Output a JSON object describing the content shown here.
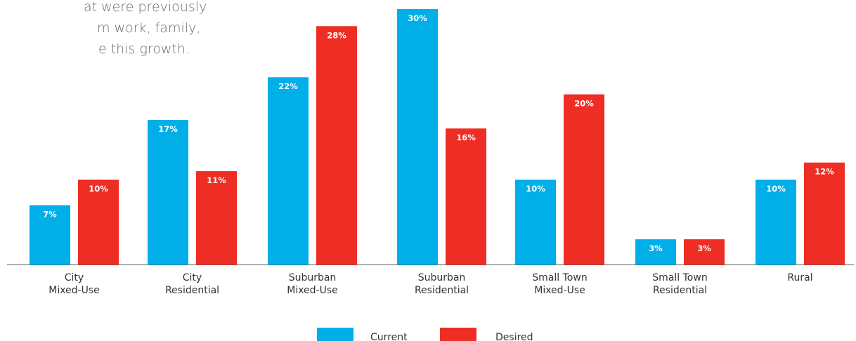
{
  "intro_lines": [
    "at were previously",
    "m work, family,",
    "e this growth."
  ],
  "chart_data": {
    "type": "bar",
    "categories": [
      [
        "City",
        "Mixed-Use"
      ],
      [
        "City",
        "Residential"
      ],
      [
        "Suburban",
        "Mixed-Use"
      ],
      [
        "Suburban",
        "Residential"
      ],
      [
        "Small Town",
        "Mixed-Use"
      ],
      [
        "Small Town",
        "Residential"
      ],
      [
        "Rural"
      ]
    ],
    "series": [
      {
        "name": "Current",
        "values": [
          7,
          17,
          22,
          30,
          10,
          3,
          10
        ],
        "labels": [
          "7%",
          "17%",
          "22%",
          "30%",
          "10%",
          "3%",
          "10%"
        ],
        "color": "#00aee8"
      },
      {
        "name": "Desired",
        "values": [
          10,
          11,
          28,
          16,
          20,
          3,
          12
        ],
        "labels": [
          "10%",
          "11%",
          "28%",
          "16%",
          "20%",
          "3%",
          "12%"
        ],
        "color": "#ee2e24"
      }
    ],
    "ylim": [
      0,
      30
    ],
    "xlabel": "",
    "ylabel": "",
    "grid": false,
    "legend_position": "bottom-center"
  }
}
